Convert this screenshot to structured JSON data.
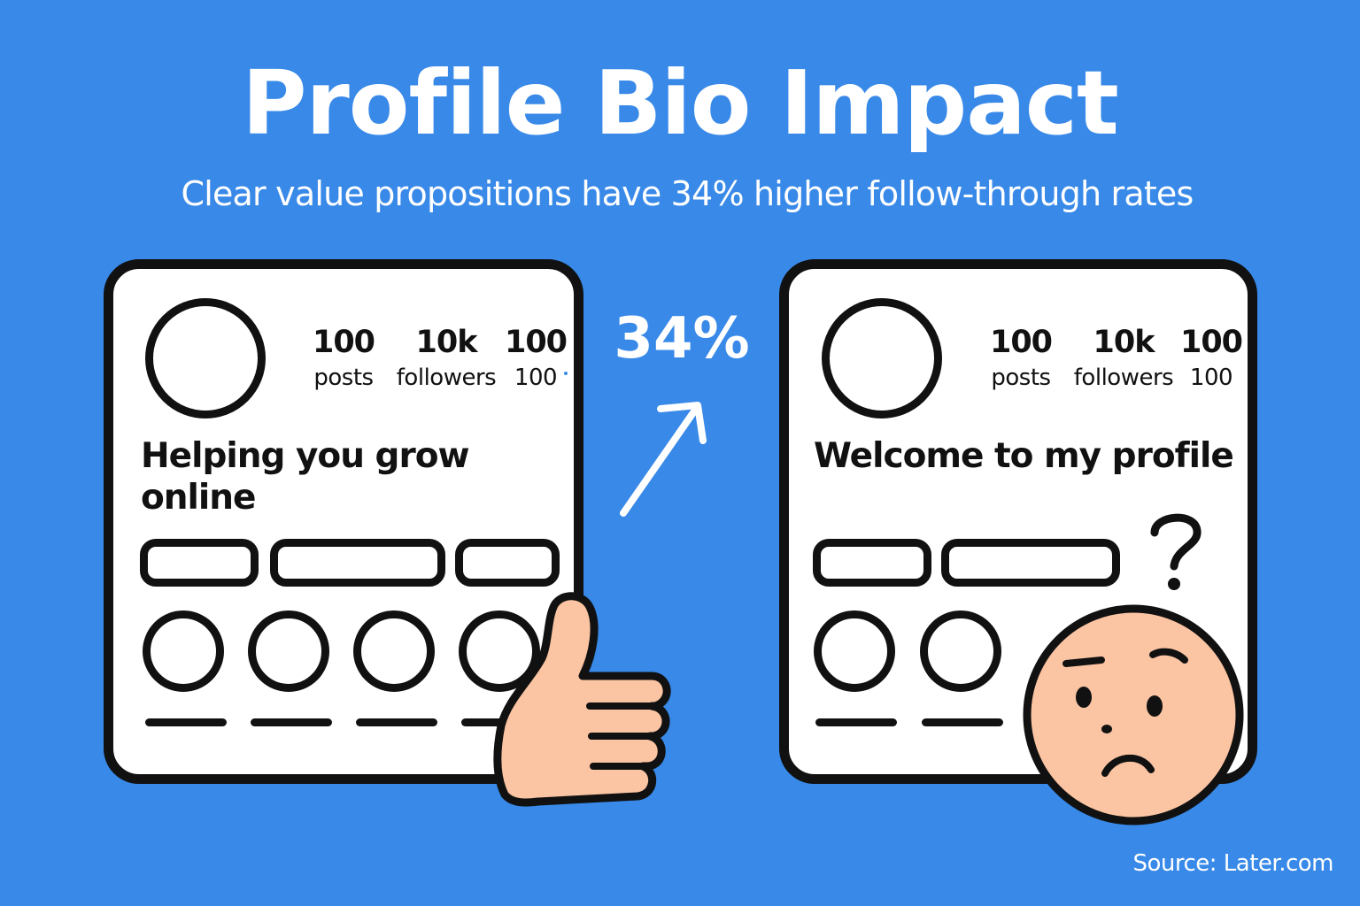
{
  "title": "Profile Bio Impact",
  "subtitle": "Clear value propositions have 34% higher follow-through rates",
  "improvement": "34%",
  "source": "Source: Later.com",
  "left_profile": {
    "stats": [
      {
        "value": "100",
        "label": "posts"
      },
      {
        "value": "10k",
        "label": "followers"
      },
      {
        "value": "100",
        "label": "100"
      }
    ],
    "bio_line1": "Helping you grow",
    "bio_line2": "online",
    "reaction_icon": "thumbs-up-icon"
  },
  "right_profile": {
    "stats": [
      {
        "value": "100",
        "label": "posts"
      },
      {
        "value": "10k",
        "label": "followers"
      },
      {
        "value": "100",
        "label": "100"
      }
    ],
    "bio": "Welcome to my profile",
    "question_mark": "?",
    "reaction_icon": "confused-face-icon"
  },
  "colors": {
    "background": "#3889e8",
    "card": "#ffffff",
    "outline": "#111111",
    "skin": "#fbc4a2"
  }
}
